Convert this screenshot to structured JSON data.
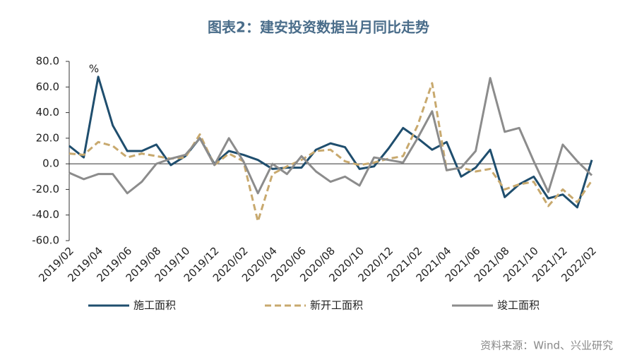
{
  "chart_data": {
    "type": "line",
    "title": "图表2：建安投资数据当月同比走势",
    "y_unit": "%",
    "source": "资料来源：Wind、兴业研究",
    "categories": [
      "2019/02",
      null,
      "2019/04",
      null,
      "2019/06",
      null,
      "2019/08",
      null,
      "2019/10",
      null,
      "2019/12",
      null,
      "2020/02",
      null,
      "2020/04",
      null,
      "2020/06",
      null,
      "2020/08",
      null,
      "2020/10",
      null,
      "2020/12",
      null,
      "2021/02",
      null,
      "2021/04",
      null,
      "2021/06",
      null,
      "2021/08",
      null,
      "2021/10",
      null,
      "2021/12",
      null,
      "2022/02"
    ],
    "series": [
      {
        "name": "施工面积",
        "color": "#1f4e6e",
        "dash": false,
        "values": [
          14,
          5,
          68,
          30,
          10,
          10,
          15,
          -1,
          6,
          20,
          0,
          10,
          7,
          3,
          -4,
          -3,
          -3,
          11,
          16,
          13,
          -4,
          -2,
          12,
          28,
          20,
          11,
          17,
          -10,
          -3,
          11,
          -26,
          -16,
          -10,
          -27,
          -24,
          -34,
          3
        ]
      },
      {
        "name": "新开工面积",
        "color": "#c8a96e",
        "dash": true,
        "values": [
          8,
          7,
          17,
          14,
          5,
          8,
          6,
          4,
          5,
          23,
          -1,
          8,
          2,
          -45,
          -8,
          -2,
          3,
          10,
          11,
          2,
          -1,
          1,
          4,
          6,
          30,
          63,
          -5,
          -3,
          -6,
          -4,
          -20,
          -16,
          -14,
          -33,
          -20,
          -30,
          -13
        ]
      },
      {
        "name": "竣工面积",
        "color": "#8c8c8c",
        "dash": false,
        "values": [
          -7,
          -12,
          -8,
          -8,
          -23,
          -14,
          0,
          4,
          7,
          20,
          -1,
          20,
          2,
          -23,
          0,
          -8,
          6,
          -6,
          -14,
          -10,
          -17,
          5,
          3,
          1,
          20,
          41,
          -5,
          -3,
          10,
          67,
          25,
          28,
          2,
          -22,
          15,
          2,
          -9
        ]
      }
    ],
    "ylim": [
      -60,
      80
    ],
    "yticks": [
      {
        "value": -60,
        "label": "-60.0"
      },
      {
        "value": -40,
        "label": "-40.0"
      },
      {
        "value": -20,
        "label": "-20.0"
      },
      {
        "value": 0,
        "label": "0.0"
      },
      {
        "value": 20,
        "label": "20.0"
      },
      {
        "value": 40,
        "label": "40.0"
      },
      {
        "value": 60,
        "label": "60.0"
      },
      {
        "value": 80,
        "label": "80.0"
      }
    ],
    "legend": "bottom"
  }
}
